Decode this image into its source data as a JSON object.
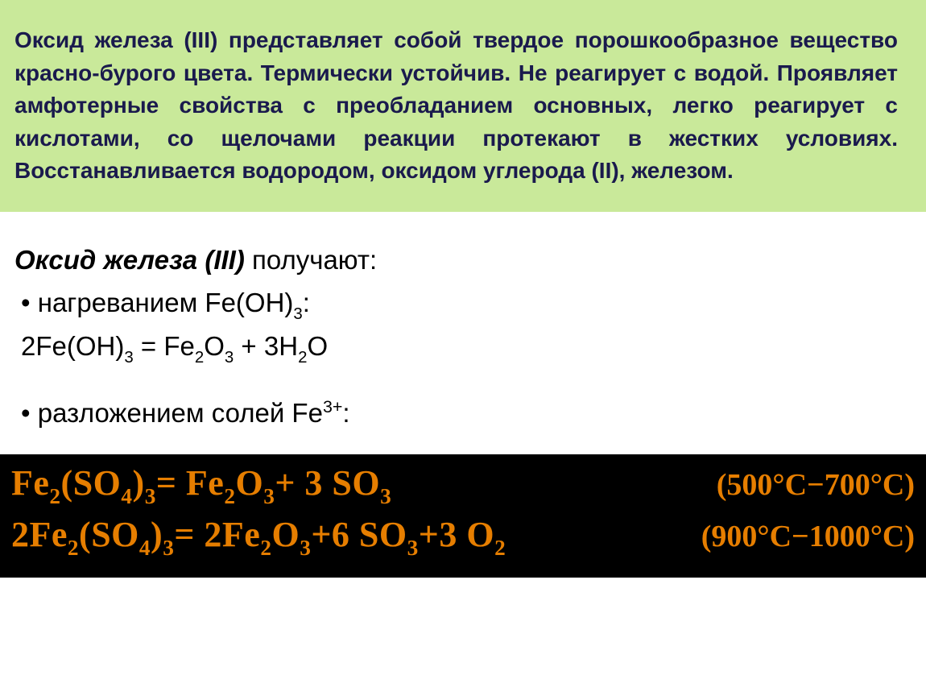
{
  "top": {
    "background_color": "#c9e99a",
    "text_color": "#1a1a4d",
    "fontsize": 28,
    "fontweight": "bold",
    "text": "Оксид железа (III) представляет собой твердое порошкообразное вещество красно-бурого цвета. Термически устойчив. Не реагирует с водой. Проявляет амфотерные свойства с преобладанием основных, легко реагирует с кислотами, со щелочами реакции протекают в жестких условиях. Восстанавливается водородом, оксидом углерода (II), железом."
  },
  "mid": {
    "background_color": "#ffffff",
    "text_color": "#000000",
    "fontsize": 33,
    "title_prefix": "Оксид железа (III) ",
    "title_suffix": "получают:",
    "bullet1": "•  нагреванием Fe(OH)",
    "bullet1_sub": "3",
    "bullet1_tail": ":",
    "eq1_a": "2Fe(OH)",
    "eq1_a_sub": "3",
    "eq1_b": " = Fe",
    "eq1_b_sub": "2",
    "eq1_c": "O",
    "eq1_c_sub": "3",
    "eq1_d": " + 3H",
    "eq1_d_sub": "2",
    "eq1_e": "O",
    "bullet2": "•  разложением солей Fe",
    "bullet2_sup": "3+",
    "bullet2_tail": ":"
  },
  "bottom": {
    "background_color": "#000000",
    "text_color": "#e67e00",
    "fontsize": 44,
    "font_family": "Times New Roman",
    "row1": {
      "t1": "Fe",
      "s1": "2",
      "t2": "(SO",
      "s2": "4",
      "t3": ")",
      "s3": "3",
      "t4": "= Fe",
      "s4": "2",
      "t5": "O",
      "s5": "3",
      "t6": "+ 3 SO",
      "s6": "3",
      "cond": "(500°C−700°C)"
    },
    "row2": {
      "t1": "2Fe",
      "s1": "2",
      "t2": "(SO",
      "s2": "4",
      "t3": ")",
      "s3": "3",
      "t4": "= 2Fe",
      "s4": "2",
      "t5": "O",
      "s5": "3",
      "t6": "+6 SO",
      "s6": "3",
      "t7": "+3 O",
      "s7": "2",
      "cond": "(900°C−1000°C)"
    }
  }
}
